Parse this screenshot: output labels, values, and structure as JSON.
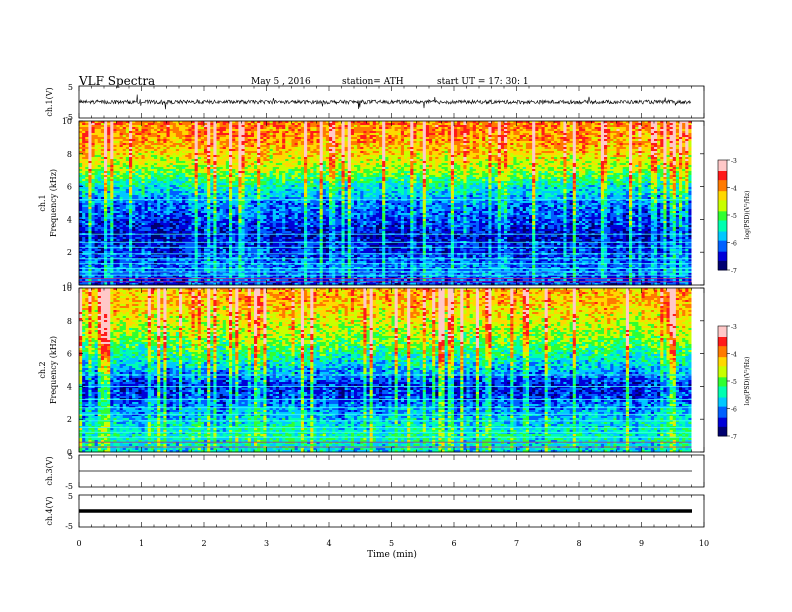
{
  "header": {
    "title": "VLF  Spectra",
    "date": "May 5  , 2016",
    "station": "station= ATH",
    "start": "start  UT  =    17: 30: 1"
  },
  "chart_data": [
    {
      "type": "line",
      "name": "ch1-waveform",
      "ylabel": "ch.1(V)",
      "ylim": [
        -5,
        5
      ],
      "yticks": [
        "5",
        "-5"
      ],
      "baseline": 0,
      "amplitude_note_value": 0.6
    },
    {
      "type": "heatmap",
      "name": "ch1-spectrogram",
      "ylabel_channel": "ch.1",
      "ylabel": "Frequency  (kHz)",
      "ylim": [
        0,
        10
      ],
      "yticks": [
        "0",
        "2",
        "4",
        "6",
        "8",
        "10"
      ],
      "xlim": [
        0,
        10
      ],
      "data_end_min": 9.8,
      "colorbar": {
        "label": "log(PSD)(V²/Hz)",
        "range": [
          -7,
          -3
        ],
        "ticks": [
          "-3",
          "-4",
          "-5",
          "-6",
          "-7"
        ]
      },
      "profile_by_kHz": [
        [
          0,
          -6.3
        ],
        [
          1,
          -6.0
        ],
        [
          2,
          -6.3
        ],
        [
          3,
          -6.5
        ],
        [
          4,
          -6.2
        ],
        [
          5,
          -6.0
        ],
        [
          6,
          -5.5
        ],
        [
          7,
          -4.8
        ],
        [
          8,
          -4.3
        ],
        [
          9,
          -4.0
        ],
        [
          10,
          -3.9
        ]
      ],
      "lines_kHz": [
        0.2,
        0.4,
        0.6,
        0.8,
        1.0,
        1.3,
        1.6,
        1.9,
        2.3,
        2.6,
        3.1,
        5.2
      ]
    },
    {
      "type": "heatmap",
      "name": "ch2-spectrogram",
      "ylabel_channel": "ch.2",
      "ylabel": "Frequency  (kHz)",
      "ylim": [
        0,
        10
      ],
      "yticks": [
        "0",
        "2",
        "4",
        "6",
        "8",
        "10"
      ],
      "xlim": [
        0,
        10
      ],
      "data_end_min": 9.8,
      "colorbar": {
        "label": "log(PSD)(V²/Hz)",
        "range": [
          -7,
          -3
        ],
        "ticks": [
          "-3",
          "-4",
          "-5",
          "-6",
          "-7"
        ]
      },
      "profile_by_kHz": [
        [
          0,
          -5.6
        ],
        [
          1,
          -5.4
        ],
        [
          2,
          -5.7
        ],
        [
          3,
          -6.1
        ],
        [
          4,
          -6.4
        ],
        [
          5,
          -5.8
        ],
        [
          6,
          -5.3
        ],
        [
          7,
          -4.8
        ],
        [
          8,
          -4.5
        ],
        [
          9,
          -4.2
        ],
        [
          10,
          -4.1
        ]
      ],
      "lines_kHz": [
        0.3,
        0.6,
        0.9,
        1.2,
        1.5,
        1.9,
        2.3,
        2.7,
        3.2,
        4.0,
        4.7
      ]
    },
    {
      "type": "line",
      "name": "ch3-waveform",
      "ylabel": "ch.3(V)",
      "ylim": [
        -5,
        5
      ],
      "yticks": [
        "5",
        "-5"
      ],
      "baseline": 0
    },
    {
      "type": "line",
      "name": "ch4-waveform",
      "ylabel": "ch.4(V)",
      "ylim": [
        -5,
        5
      ],
      "yticks": [
        "5",
        "-5"
      ],
      "baseline": 0
    }
  ],
  "xaxis": {
    "label": "Time  (min)",
    "xlim": [
      0,
      10
    ],
    "ticks": [
      "0",
      "1",
      "2",
      "3",
      "4",
      "5",
      "6",
      "7",
      "8",
      "9",
      "10"
    ]
  },
  "colors": {
    "scale": [
      "#000070",
      "#0000d8",
      "#0060ff",
      "#00c8ff",
      "#00ffb0",
      "#30ff30",
      "#c8ff00",
      "#ffd800",
      "#ff7a00",
      "#ff1a1a",
      "#ffc8c8",
      "#ffffff"
    ]
  }
}
